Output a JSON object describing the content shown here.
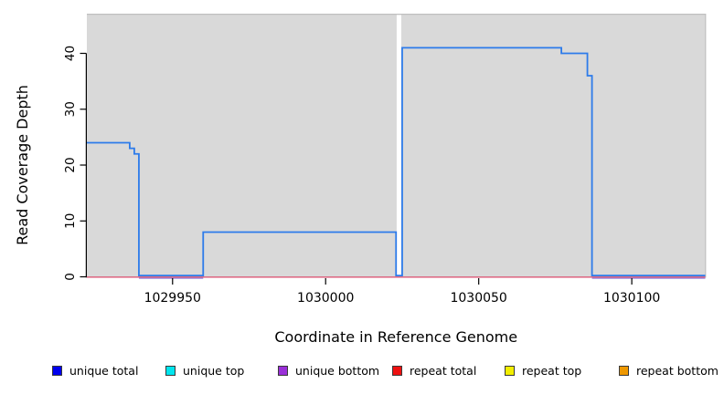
{
  "figure": {
    "plot_bg": "#d9d9d9",
    "plot_edge": "#c0c0c0",
    "gap_color": "#ffffff",
    "axis_color": "#000000"
  },
  "chart_data": {
    "type": "line",
    "subtype": "step-coverage-plot",
    "title": "",
    "xlabel": "Coordinate in Reference Genome",
    "ylabel": "Read Coverage Depth",
    "xlim": [
      1029922,
      1030124
    ],
    "ylim": [
      0,
      47
    ],
    "x_ticks": [
      1029950,
      1030000,
      1030050,
      1030100
    ],
    "y_ticks": [
      0,
      10,
      20,
      30,
      40
    ],
    "grid": false,
    "legend_position": "bottom",
    "series": [
      {
        "name": "unique total",
        "color": "#2d7bea",
        "line_width": 1.8,
        "steps": [
          {
            "from": 1029922,
            "to": 1029936,
            "depth": 24
          },
          {
            "from": 1029936,
            "to": 1029937.5,
            "depth": 23
          },
          {
            "from": 1029937.5,
            "to": 1029939,
            "depth": 22
          },
          {
            "from": 1029939,
            "to": 1029960,
            "depth": 0
          },
          {
            "from": 1029960,
            "to": 1030023,
            "depth": 8
          },
          {
            "from": 1030023,
            "to": 1030025,
            "depth": 0
          },
          {
            "from": 1030025,
            "to": 1030077,
            "depth": 41
          },
          {
            "from": 1030077,
            "to": 1030085.5,
            "depth": 40
          },
          {
            "from": 1030085.5,
            "to": 1030087,
            "depth": 36
          },
          {
            "from": 1030087,
            "to": 1030124,
            "depth": 0
          }
        ]
      },
      {
        "name": "repeat total",
        "color": "#db4a6b",
        "line_width": 1.3,
        "steps": [
          {
            "from": 1029922,
            "to": 1030124,
            "depth": 0
          }
        ]
      }
    ],
    "gap_region": {
      "from": 1030023.2,
      "to": 1030024.7
    },
    "zero_coverage_underline": {
      "color": "#988ae0",
      "segments": [
        [
          1029939,
          1029960
        ],
        [
          1030087,
          1030124
        ]
      ]
    }
  },
  "legend": {
    "items": [
      {
        "label": "unique total",
        "color": "#0000ee"
      },
      {
        "label": "unique top",
        "color": "#00e5ee"
      },
      {
        "label": "unique bottom",
        "color": "#9a30d8"
      },
      {
        "label": "repeat total",
        "color": "#ee1111"
      },
      {
        "label": "repeat top",
        "color": "#f2ee00"
      },
      {
        "label": "repeat bottom",
        "color": "#ee9800"
      }
    ]
  }
}
